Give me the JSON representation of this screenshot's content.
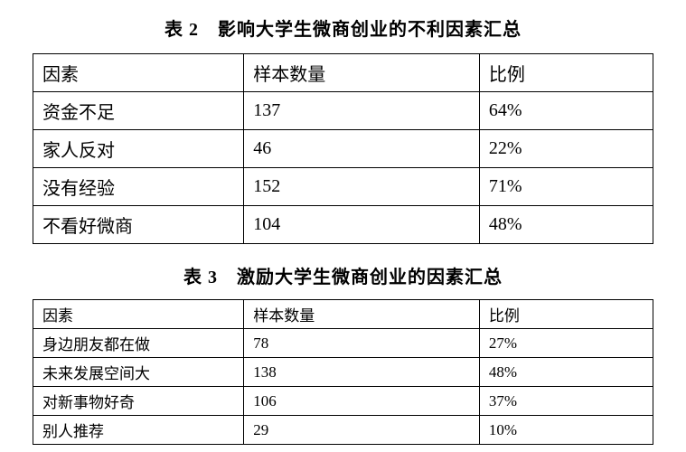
{
  "tableA": {
    "title": "表 2　影响大学生微商创业的不利因素汇总",
    "columns": [
      "因素",
      "样本数量",
      "比例"
    ],
    "rows": [
      {
        "factor": "资金不足",
        "sample": "137",
        "ratio": "64%"
      },
      {
        "factor": "家人反对",
        "sample": "46",
        "ratio": "22%"
      },
      {
        "factor": "没有经验",
        "sample": "152",
        "ratio": "71%"
      },
      {
        "factor": "不看好微商",
        "sample": "104",
        "ratio": "48%"
      }
    ]
  },
  "tableB": {
    "title": "表 3　激励大学生微商创业的因素汇总",
    "columns": [
      "因素",
      "样本数量",
      "比例"
    ],
    "rows": [
      {
        "factor": "身边朋友都在做",
        "sample": "78",
        "ratio": "27%"
      },
      {
        "factor": "未来发展空间大",
        "sample": "138",
        "ratio": "48%"
      },
      {
        "factor": "对新事物好奇",
        "sample": "106",
        "ratio": "37%"
      },
      {
        "factor": "别人推荐",
        "sample": "29",
        "ratio": "10%"
      }
    ]
  },
  "style": {
    "background_color": "#ffffff",
    "text_color": "#000000",
    "border_color": "#000000",
    "title_fontsize_pt": 15,
    "tableA_cell_fontsize_pt": 15,
    "tableB_cell_fontsize_pt": 13,
    "font_family": "SimSun",
    "col_widths_percent": {
      "factor": 34,
      "sample": 38,
      "ratio": 28
    }
  }
}
